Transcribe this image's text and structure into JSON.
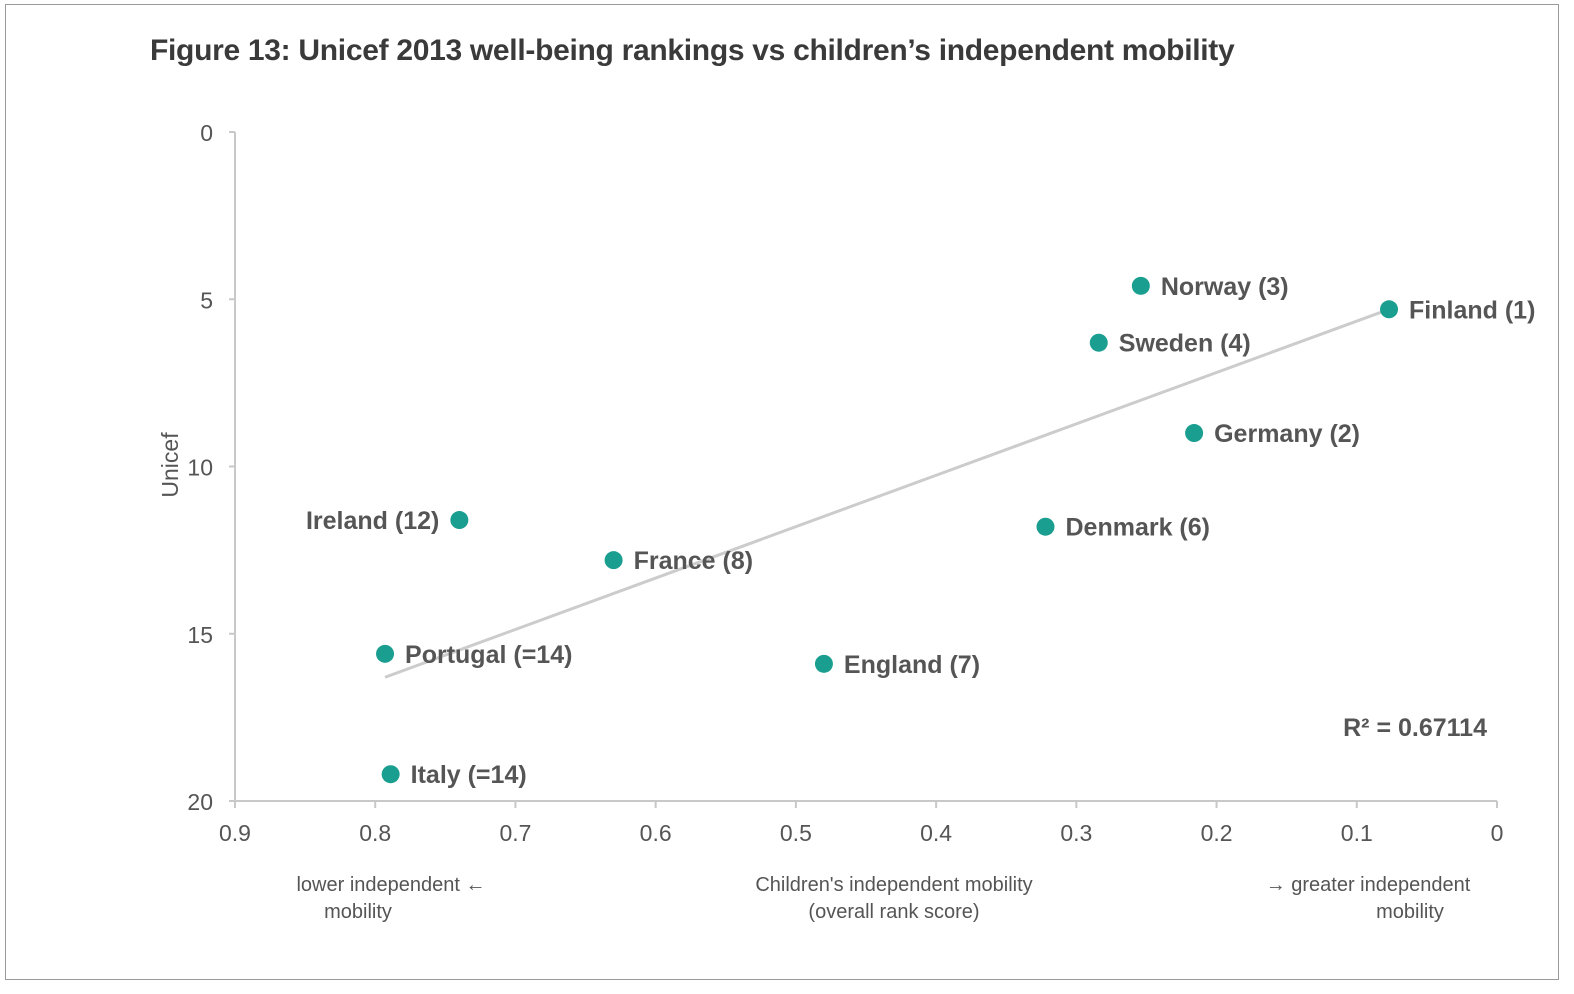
{
  "chart_data": {
    "type": "scatter",
    "title": "Figure 13: Unicef 2013 well-being rankings vs children’s independent mobility",
    "ylabel": "Unicef",
    "xlabel_lines": [
      "Children's independent mobility",
      "(overall rank score)"
    ],
    "x_left_note_lines": [
      "lower independent ←",
      "mobility"
    ],
    "x_right_note_lines": [
      "→ greater independent",
      "mobility"
    ],
    "xlim": [
      0.9,
      0
    ],
    "ylim": [
      0,
      20
    ],
    "x_ticks": [
      {
        "value": 0.9,
        "label": "0.9"
      },
      {
        "value": 0.8,
        "label": "0.8"
      },
      {
        "value": 0.7,
        "label": "0.7"
      },
      {
        "value": 0.6,
        "label": "0.6"
      },
      {
        "value": 0.5,
        "label": "0.5"
      },
      {
        "value": 0.4,
        "label": "0.4"
      },
      {
        "value": 0.3,
        "label": "0.3"
      },
      {
        "value": 0.2,
        "label": "0.2"
      },
      {
        "value": 0.1,
        "label": "0.1"
      },
      {
        "value": 0,
        "label": "0"
      }
    ],
    "y_ticks": [
      {
        "value": 0,
        "label": "0"
      },
      {
        "value": 5,
        "label": "5"
      },
      {
        "value": 10,
        "label": "10"
      },
      {
        "value": 15,
        "label": "15"
      },
      {
        "value": 20,
        "label": "20"
      }
    ],
    "points": [
      {
        "x": 0.077,
        "y": 5.3,
        "label": "Finland (1)",
        "side": "right"
      },
      {
        "x": 0.254,
        "y": 4.6,
        "label": "Norway (3)",
        "side": "right"
      },
      {
        "x": 0.284,
        "y": 6.3,
        "label": "Sweden (4)",
        "side": "right"
      },
      {
        "x": 0.216,
        "y": 9.0,
        "label": "Germany (2)",
        "side": "right"
      },
      {
        "x": 0.322,
        "y": 11.8,
        "label": "Denmark (6)",
        "side": "right"
      },
      {
        "x": 0.74,
        "y": 11.6,
        "label": "Ireland (12)",
        "side": "left"
      },
      {
        "x": 0.63,
        "y": 12.8,
        "label": "France (8)",
        "side": "right"
      },
      {
        "x": 0.793,
        "y": 15.6,
        "label": "Portugal (=14)",
        "side": "right"
      },
      {
        "x": 0.48,
        "y": 15.9,
        "label": "England (7)",
        "side": "right"
      },
      {
        "x": 0.789,
        "y": 19.2,
        "label": "Italy (=14)",
        "side": "right"
      }
    ],
    "trendline": {
      "x1": 0.793,
      "y1": 16.3,
      "x2": 0.077,
      "y2": 5.3
    },
    "r_squared_label": "R² = 0.67114",
    "colors": {
      "point": "#1a9e8f",
      "trendline": "#cccccc",
      "axis": "#c8c8c8",
      "text": "#555555"
    }
  }
}
